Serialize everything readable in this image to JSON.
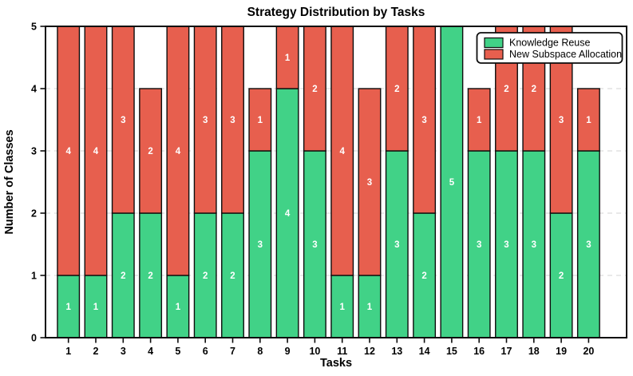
{
  "chart_data": {
    "type": "bar",
    "stacked": true,
    "title": "Strategy Distribution by Tasks",
    "xlabel": "Tasks",
    "ylabel": "Number of Classes",
    "categories": [
      "1",
      "2",
      "3",
      "4",
      "5",
      "6",
      "7",
      "8",
      "9",
      "10",
      "11",
      "12",
      "13",
      "14",
      "15",
      "16",
      "17",
      "18",
      "19",
      "20"
    ],
    "series": [
      {
        "name": "Knowledge Reuse",
        "color": "#41d287",
        "values": [
          1,
          1,
          2,
          2,
          1,
          2,
          2,
          3,
          4,
          3,
          1,
          1,
          3,
          2,
          5,
          3,
          3,
          3,
          2,
          3
        ]
      },
      {
        "name": "New Subspace Allocation",
        "color": "#e75f4e",
        "values": [
          4,
          4,
          3,
          2,
          4,
          3,
          3,
          1,
          1,
          2,
          4,
          3,
          2,
          3,
          0,
          1,
          2,
          2,
          3,
          1
        ]
      }
    ],
    "ylim": [
      0,
      5
    ],
    "yticks": [
      "0",
      "1",
      "2",
      "3",
      "4",
      "5"
    ],
    "grid": true,
    "grid_style": "dashed",
    "grid_color": "#dcdcdc",
    "edge_color": "#0d0d0d",
    "bar_label_color": "#ffffff",
    "legend_position": "upper-right"
  }
}
